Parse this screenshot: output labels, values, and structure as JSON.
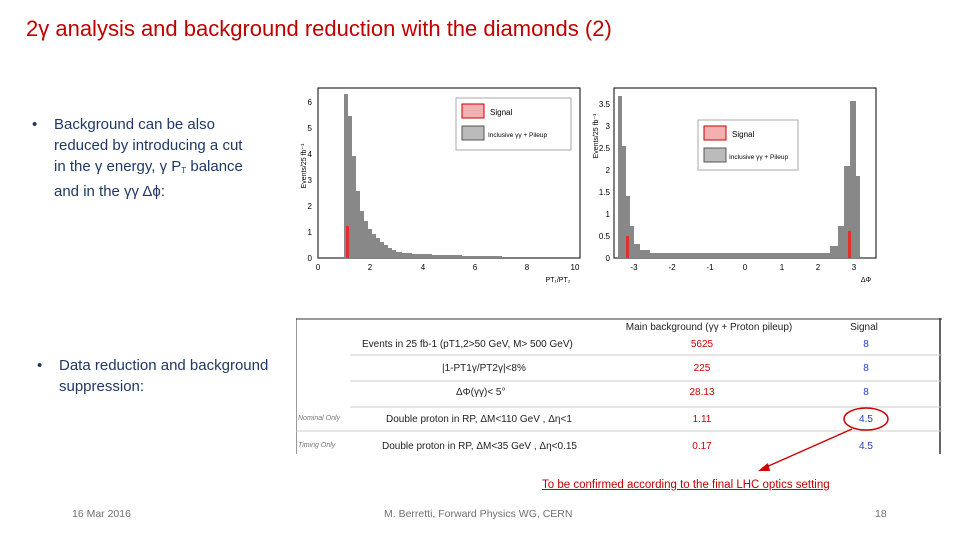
{
  "title": "2γ analysis and background reduction with the diamonds (2)",
  "bullets": [
    {
      "symbol": "•",
      "text": "Background can be also reduced by introducing a cut in the γ energy, γ P",
      "sub": "T",
      "text_after": " balance and in the γγ Δϕ:"
    },
    {
      "symbol": "•",
      "text": "Data reduction and background suppression:"
    }
  ],
  "plot_left": {
    "ylabel": "Events/25 fb⁻¹",
    "xlabel": "PT₁/PT₂",
    "legend": [
      "Signal",
      "Inclusive γγ + Pileup"
    ],
    "yticks": [
      "0",
      "1",
      "2",
      "3",
      "4",
      "5",
      "6"
    ],
    "xticks": [
      "0",
      "2",
      "4",
      "6",
      "8",
      "10"
    ]
  },
  "plot_right": {
    "ylabel": "Events/25 fb⁻¹",
    "xlabel": "ΔΦ",
    "legend": [
      "Signal",
      "Inclusive γγ + Pileup"
    ],
    "yticks": [
      "0",
      "0.5",
      "1",
      "1.5",
      "2",
      "2.5",
      "3",
      "3.5"
    ],
    "xticks": [
      "-3",
      "-2",
      "-1",
      "0",
      "1",
      "2",
      "3"
    ]
  },
  "table": {
    "headers": {
      "main": "Main background (γγ + Proton pileup)",
      "signal": "Signal"
    },
    "rows": [
      {
        "label": "Events in 25 fb-1 (pT1,2>50 GeV, M> 500 GeV)",
        "main": "5625",
        "signal": "8",
        "tag": ""
      },
      {
        "label": "|1-PT1γ/PT2γ|<8%",
        "main": "225",
        "signal": "8",
        "tag": ""
      },
      {
        "label": "ΔΦ(γγ)< 5°",
        "main": "28.13",
        "signal": "8",
        "tag": ""
      },
      {
        "label": "Double proton in RP, ΔM<110 GeV , Δη<1",
        "main": "1.11",
        "signal": "4.5",
        "tag": "Nominal Only"
      },
      {
        "label": "Double proton in RP, ΔM<35 GeV , Δη<0.15",
        "main": "0.17",
        "signal": "4.5",
        "tag": "Timing Only"
      }
    ]
  },
  "note": "To be confirmed according to the final LHC optics setting",
  "footer": {
    "date": "16 Mar 2016",
    "author": "M. Berretti, Forward Physics WG, CERN",
    "page": "18"
  },
  "colors": {
    "title": "#c00000",
    "text": "#1f3864",
    "main": "#d00000",
    "signal": "#2040c0"
  }
}
